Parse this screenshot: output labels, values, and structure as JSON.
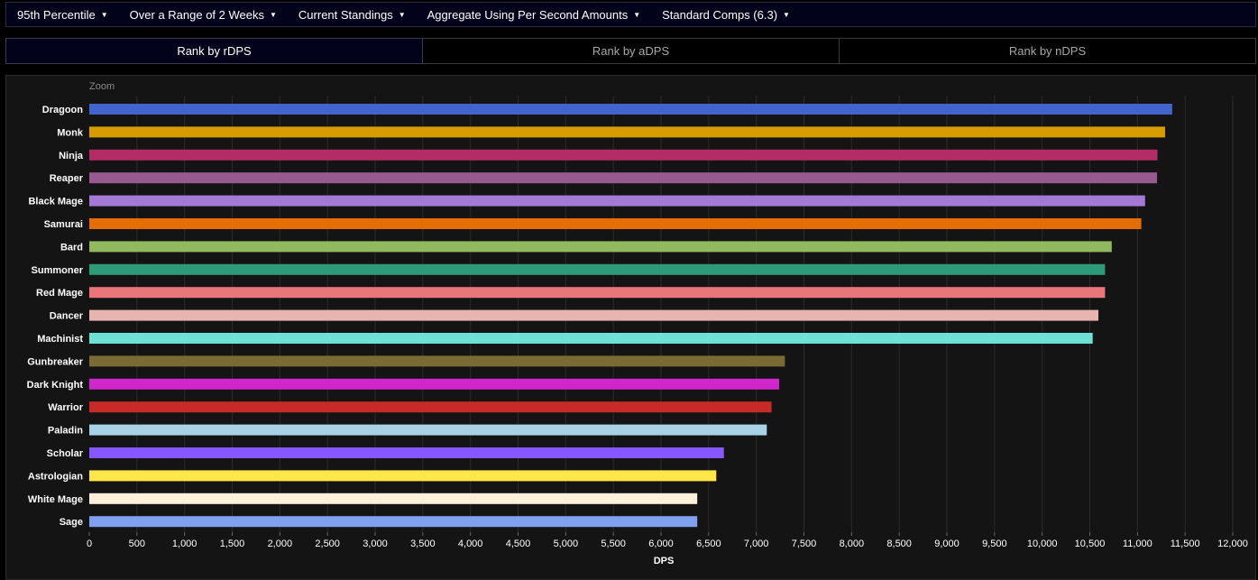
{
  "filters": [
    {
      "label": "95th Percentile"
    },
    {
      "label": "Over a Range of 2 Weeks"
    },
    {
      "label": "Current Standings"
    },
    {
      "label": "Aggregate Using Per Second Amounts"
    },
    {
      "label": "Standard Comps (6.3)"
    }
  ],
  "tabs": [
    {
      "label": "Rank by rDPS",
      "active": true
    },
    {
      "label": "Rank by aDPS",
      "active": false
    },
    {
      "label": "Rank by nDPS",
      "active": false
    }
  ],
  "chart": {
    "zoom_label": "Zoom"
  },
  "chart_data": {
    "type": "bar",
    "orientation": "horizontal",
    "xlabel": "DPS",
    "xlim": [
      0,
      12000
    ],
    "xticks": [
      0,
      500,
      1000,
      1500,
      2000,
      2500,
      3000,
      3500,
      4000,
      4500,
      5000,
      5500,
      6000,
      6500,
      7000,
      7500,
      8000,
      8500,
      9000,
      9500,
      10000,
      10500,
      11000,
      11500,
      12000
    ],
    "xtick_labels": [
      "0",
      "500",
      "1,000",
      "1,500",
      "2,000",
      "2,500",
      "3,000",
      "3,500",
      "4,000",
      "4,500",
      "5,000",
      "5,500",
      "6,000",
      "6,500",
      "7,000",
      "7,500",
      "8,000",
      "8,500",
      "9,000",
      "9,500",
      "10,000",
      "10,500",
      "11,000",
      "11,500",
      "12,000"
    ],
    "grid": true,
    "categories": [
      "Dragoon",
      "Monk",
      "Ninja",
      "Reaper",
      "Black Mage",
      "Samurai",
      "Bard",
      "Summoner",
      "Red Mage",
      "Dancer",
      "Machinist",
      "Gunbreaker",
      "Dark Knight",
      "Warrior",
      "Paladin",
      "Scholar",
      "Astrologian",
      "White Mage",
      "Sage"
    ],
    "values": [
      11365,
      11290,
      11210,
      11205,
      11080,
      11040,
      10730,
      10660,
      10660,
      10590,
      10530,
      7300,
      7240,
      7160,
      7110,
      6660,
      6580,
      6380,
      6380
    ],
    "colors": [
      "#4164cd",
      "#d69c00",
      "#b52b65",
      "#965a90",
      "#a579d6",
      "#e46d04",
      "#91ba5e",
      "#2d9b78",
      "#e8767a",
      "#e8b4b0",
      "#6ee1d6",
      "#7a6a33",
      "#d126cc",
      "#c82a27",
      "#a8d2e6",
      "#8657ff",
      "#ffe74a",
      "#fff0dc",
      "#80a0f0"
    ]
  }
}
